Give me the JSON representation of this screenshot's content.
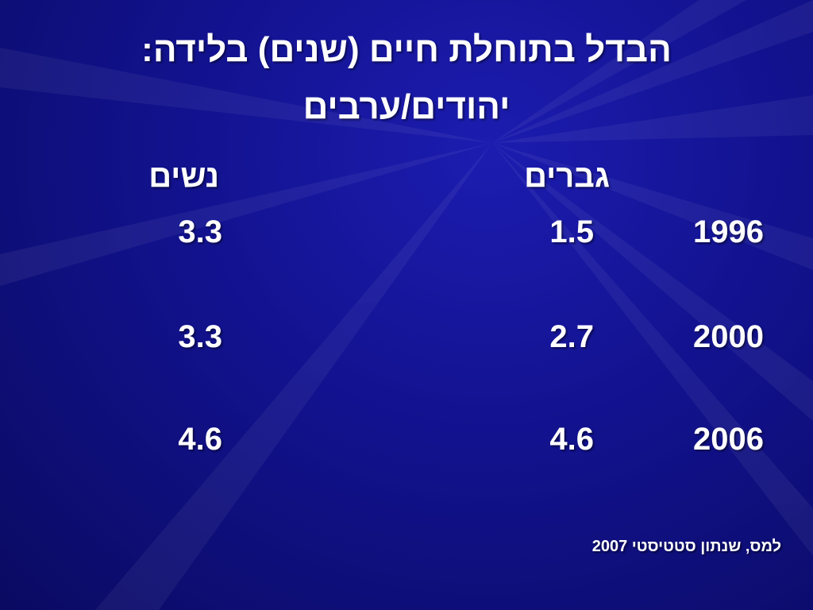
{
  "title": {
    "line1": "הבדל בתוחלת חיים (שנים) בלידה:",
    "line2": "יהודים/ערבים"
  },
  "table": {
    "columns": [
      "גברים",
      "נשים"
    ],
    "rows": [
      [
        "1996",
        "1.5",
        "3.3"
      ],
      [
        "2000",
        "2.7",
        "3.3"
      ],
      [
        "2006",
        "4.6",
        "4.6"
      ]
    ]
  },
  "source": "למס, שנתון סטטיסטי 2007"
}
